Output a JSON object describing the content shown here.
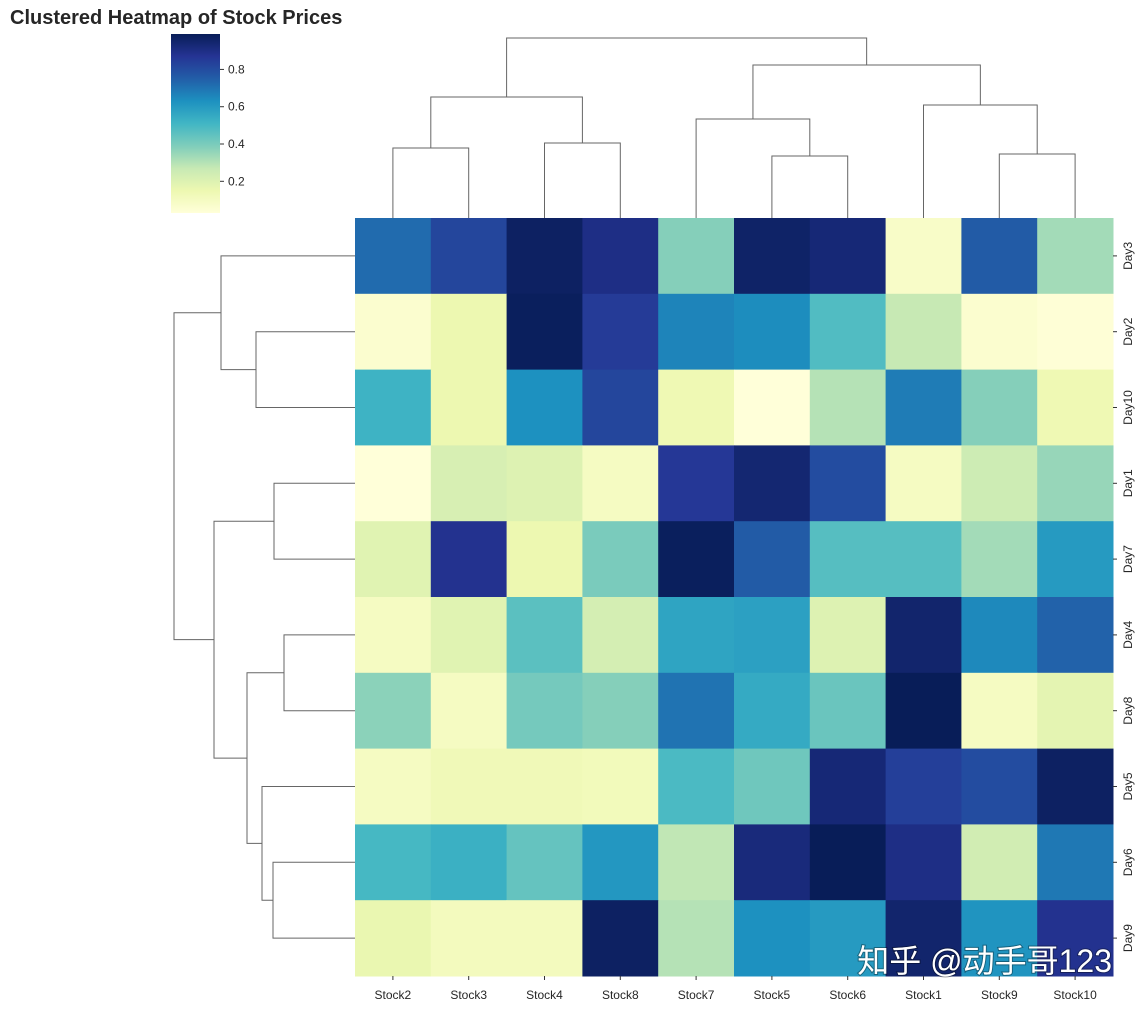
{
  "chart_data": {
    "type": "heatmap",
    "title": "Clustered Heatmap of Stock Prices",
    "colormap": "YlGnBu",
    "colormap_stops": [
      "#ffffd9",
      "#edf8b1",
      "#c7e9b4",
      "#7fcdbb",
      "#41b6c4",
      "#1d91c0",
      "#225ea8",
      "#253494",
      "#081d58"
    ],
    "value_range": [
      0.03,
      0.99
    ],
    "colorbar_ticks": [
      "0.2",
      "0.4",
      "0.6",
      "0.8"
    ],
    "colorbar_tick_values": [
      0.2,
      0.4,
      0.6,
      0.8
    ],
    "columns": [
      "Stock2",
      "Stock3",
      "Stock4",
      "Stock8",
      "Stock7",
      "Stock5",
      "Stock6",
      "Stock1",
      "Stock9",
      "Stock10"
    ],
    "rows": [
      "Day3",
      "Day2",
      "Day10",
      "Day1",
      "Day7",
      "Day4",
      "Day8",
      "Day5",
      "Day6",
      "Day9"
    ],
    "values": [
      [
        0.72,
        0.82,
        0.97,
        0.9,
        0.38,
        0.96,
        0.93,
        0.08,
        0.76,
        0.33
      ],
      [
        0.06,
        0.15,
        0.98,
        0.85,
        0.66,
        0.64,
        0.48,
        0.27,
        0.06,
        0.04
      ],
      [
        0.52,
        0.15,
        0.63,
        0.82,
        0.14,
        0.03,
        0.3,
        0.68,
        0.38,
        0.14
      ],
      [
        0.03,
        0.22,
        0.2,
        0.1,
        0.86,
        0.94,
        0.8,
        0.1,
        0.25,
        0.35
      ],
      [
        0.19,
        0.88,
        0.15,
        0.4,
        0.98,
        0.76,
        0.47,
        0.47,
        0.33,
        0.6
      ],
      [
        0.1,
        0.19,
        0.46,
        0.23,
        0.57,
        0.58,
        0.2,
        0.95,
        0.65,
        0.74
      ],
      [
        0.37,
        0.1,
        0.41,
        0.38,
        0.7,
        0.55,
        0.43,
        0.99,
        0.1,
        0.18
      ],
      [
        0.1,
        0.13,
        0.13,
        0.12,
        0.49,
        0.42,
        0.93,
        0.84,
        0.8,
        0.97
      ],
      [
        0.5,
        0.53,
        0.44,
        0.61,
        0.28,
        0.92,
        0.99,
        0.9,
        0.24,
        0.69
      ],
      [
        0.16,
        0.11,
        0.11,
        0.97,
        0.3,
        0.63,
        0.6,
        0.95,
        0.62,
        0.88
      ]
    ],
    "row_dendrogram": true,
    "col_dendrogram": true,
    "watermark": "知乎 @动手哥123"
  }
}
